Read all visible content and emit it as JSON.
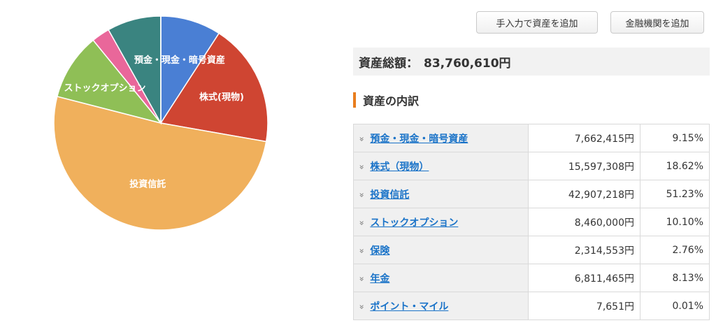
{
  "buttons": {
    "manual_add": "手入力で資産を追加",
    "bank_add": "金融機関を追加"
  },
  "total": {
    "label": "資産総額：",
    "value": "83,760,610円"
  },
  "section_title": "資産の内訳",
  "icons": {
    "row_expand": "double-chevron-down-icon"
  },
  "assets": [
    {
      "name": "預金・現金・暗号資産",
      "amount": "7,662,415円",
      "percent": "9.15%",
      "share": 9.15,
      "color": "#4a7fd4"
    },
    {
      "name": "株式（現物）",
      "amount": "15,597,308円",
      "percent": "18.62%",
      "share": 18.62,
      "color": "#cf4532"
    },
    {
      "name": "投資信託",
      "amount": "42,907,218円",
      "percent": "51.23%",
      "share": 51.23,
      "color": "#f0b05c"
    },
    {
      "name": "ストックオプション",
      "amount": "8,460,000円",
      "percent": "10.10%",
      "share": 10.1,
      "color": "#8fbf56"
    },
    {
      "name": "保険",
      "amount": "2,314,553円",
      "percent": "2.76%",
      "share": 2.76,
      "color": "#e9679a"
    },
    {
      "name": "年金",
      "amount": "6,811,465円",
      "percent": "8.13%",
      "share": 8.13,
      "color": "#3a8480"
    },
    {
      "name": "ポイント・マイル",
      "amount": "7,651円",
      "percent": "0.01%",
      "share": 0.01,
      "color": "#9b6bbf"
    }
  ],
  "chart_data": {
    "type": "pie",
    "categories": [
      "預金・現金・暗号資産",
      "株式(現物)",
      "投資信託",
      "ストックオプション",
      "保険",
      "年金",
      "ポイント・マイル"
    ],
    "slice_labels": [
      "預金・現金・暗号資産",
      "株式(現物)",
      "投資信託",
      "ストックオプション",
      "",
      "",
      ""
    ],
    "values": [
      9.15,
      18.62,
      51.23,
      10.1,
      2.76,
      8.13,
      0.01
    ],
    "colors": [
      "#4a7fd4",
      "#cf4532",
      "#f0b05c",
      "#8fbf56",
      "#e9679a",
      "#3a8480",
      "#9b6bbf"
    ]
  }
}
